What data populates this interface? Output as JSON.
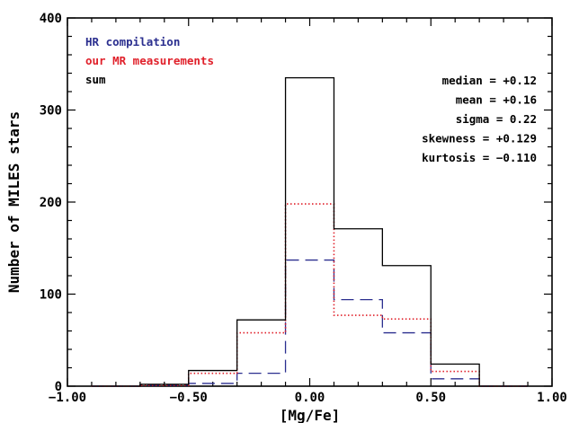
{
  "chart_data": {
    "type": "histogram",
    "xlabel": "[Mg/Fe]",
    "ylabel": "Number of MILES stars",
    "xlim": [
      -1.0,
      1.0
    ],
    "ylim": [
      0,
      400
    ],
    "xticks": [
      -1.0,
      -0.5,
      0.0,
      0.5,
      1.0
    ],
    "xtick_labels": [
      "−1.00",
      "−0.50",
      "0.00",
      "0.50",
      "1.00"
    ],
    "yticks": [
      0,
      100,
      200,
      300,
      400
    ],
    "ytick_labels": [
      "0",
      "100",
      "200",
      "300",
      "400"
    ],
    "bin_edges": [
      -0.9,
      -0.7,
      -0.5,
      -0.3,
      -0.1,
      0.1,
      0.3,
      0.5,
      0.7,
      0.9
    ],
    "series": [
      {
        "name": "HR compilation",
        "style": "dashed",
        "color": "#2b2f8f",
        "values": [
          0,
          1,
          3,
          14,
          137,
          94,
          58,
          8,
          0
        ]
      },
      {
        "name": "our MR measurements",
        "style": "dotted",
        "color": "#e0202a",
        "values": [
          0,
          1,
          14,
          58,
          198,
          77,
          73,
          16,
          0
        ]
      },
      {
        "name": "sum",
        "style": "solid",
        "color": "#000000",
        "values": [
          0,
          2,
          17,
          72,
          335,
          171,
          131,
          24,
          0
        ]
      }
    ],
    "legend_position": "top-left",
    "stats": [
      "median = +0.12",
      "mean = +0.16",
      "sigma = 0.22",
      "skewness = +0.129",
      "kurtosis = −0.110"
    ]
  }
}
